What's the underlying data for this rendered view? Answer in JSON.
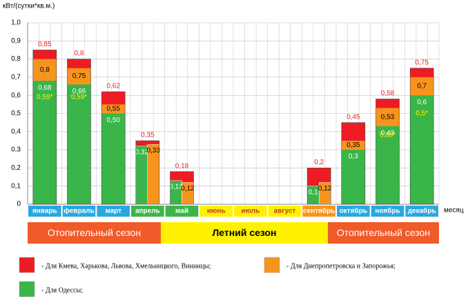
{
  "chart_data": {
    "type": "overlap-bar",
    "y_label": "кВт/(сутки*кв.м.)",
    "x_label": "месяц",
    "categories": [
      "январь",
      "февраль",
      "март",
      "апрель",
      "май",
      "июнь",
      "июль",
      "август",
      "сентябрь",
      "октябрь",
      "ноябрь",
      "декабрь"
    ],
    "category_colors": [
      "#29a8e0",
      "#29a8e0",
      "#29a8e0",
      "#3cb54a",
      "#3cb54a",
      "#fff200",
      "#fff200",
      "#fff200",
      "#f7941d",
      "#29a8e0",
      "#29a8e0",
      "#29a8e0"
    ],
    "ylim": [
      0,
      1.0
    ],
    "yticks": [
      0,
      {
        "value": 0.1,
        "label": "0,1"
      },
      {
        "value": 0.2,
        "label": "0,2"
      },
      {
        "value": 0.3,
        "label": "0,3"
      },
      {
        "value": 0.4,
        "label": "0,4"
      },
      {
        "value": 0.5,
        "label": "0,5"
      },
      {
        "value": 0.6,
        "label": "0,6"
      },
      {
        "value": 0.7,
        "label": "0,7"
      },
      {
        "value": 0.8,
        "label": "0,8"
      },
      {
        "value": 0.9,
        "label": "0,9"
      },
      {
        "value": 1.0,
        "label": "1,0"
      }
    ],
    "grid": true,
    "series": [
      {
        "name": "- Для Кмева, Харькова, Львова, Хмельницкого, Винницы;",
        "color": "#ed1c24",
        "values": [
          0.85,
          0.8,
          0.62,
          0.35,
          0.18,
          null,
          null,
          null,
          0.2,
          0.45,
          0.58,
          0.75
        ],
        "value_labels": [
          "0,85",
          "0,8",
          "0,62",
          "0,35",
          "0,18",
          null,
          null,
          null,
          "0,2",
          "0,45",
          "0,58",
          "0,75"
        ]
      },
      {
        "name": "- Для Днепропетровска и Запорожья;",
        "color": "#f7941d",
        "values": [
          0.8,
          0.75,
          0.55,
          0.33,
          0.12,
          null,
          null,
          null,
          0.12,
          0.35,
          0.53,
          0.7
        ],
        "value_labels": [
          "0,8",
          "0,75",
          "0,55",
          "0,33",
          "0,12",
          null,
          null,
          null,
          "0,12",
          "0,35",
          "0,53",
          "0,7"
        ]
      },
      {
        "name": "- Для Одессы;",
        "color": "#39b54a",
        "values": [
          0.68,
          0.66,
          0.5,
          0.32,
          0.13,
          null,
          null,
          null,
          0.1,
          0.3,
          0.43,
          0.6
        ],
        "value_labels": [
          "0,68",
          "0,66",
          "0,50",
          "0,32",
          "0,13",
          null,
          null,
          null,
          "0,1",
          "0,3",
          "0,43",
          "0,6"
        ]
      }
    ],
    "notes": {
      "color": "#fff200",
      "values": [
        0.59,
        0.59,
        null,
        null,
        null,
        null,
        null,
        null,
        null,
        null,
        0.38,
        0.5
      ],
      "value_labels": [
        "0,59*",
        "0,59*",
        null,
        null,
        null,
        null,
        null,
        null,
        null,
        null,
        "0,38*",
        "0,5*"
      ]
    }
  },
  "seasons": [
    "Отопительный сезон",
    "Летний сезон",
    "Отопительный сезон"
  ]
}
